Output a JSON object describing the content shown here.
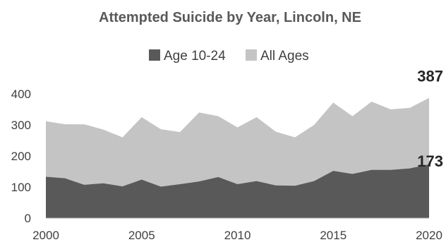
{
  "chart_data": {
    "type": "area",
    "title": "Attempted Suicide by Year, Lincoln, NE",
    "xlabel": "",
    "ylabel": "",
    "x": [
      2000,
      2001,
      2002,
      2003,
      2004,
      2005,
      2006,
      2007,
      2008,
      2009,
      2010,
      2011,
      2012,
      2013,
      2014,
      2015,
      2016,
      2017,
      2018,
      2019,
      2020
    ],
    "xticks": [
      "2000",
      "2005",
      "2010",
      "2015",
      "2020"
    ],
    "yticks": [
      "0",
      "100",
      "200",
      "300",
      "400"
    ],
    "ylim": [
      0,
      420
    ],
    "xlim": [
      2000,
      2020
    ],
    "grid": false,
    "legend_position": "top",
    "series": [
      {
        "name": "Age 10-24",
        "color": "#595959",
        "values": [
          133,
          128,
          107,
          112,
          102,
          124,
          101,
          109,
          118,
          132,
          109,
          119,
          105,
          104,
          119,
          152,
          142,
          155,
          155,
          160,
          173
        ]
      },
      {
        "name": "All Ages",
        "color": "#c4c4c4",
        "values": [
          312,
          302,
          302,
          285,
          260,
          325,
          286,
          277,
          340,
          328,
          292,
          325,
          278,
          260,
          300,
          372,
          328,
          375,
          350,
          355,
          387
        ]
      }
    ],
    "annotations": [
      {
        "text": "387",
        "series": 1,
        "x": 2020
      },
      {
        "text": "173",
        "series": 0,
        "x": 2020
      }
    ]
  }
}
